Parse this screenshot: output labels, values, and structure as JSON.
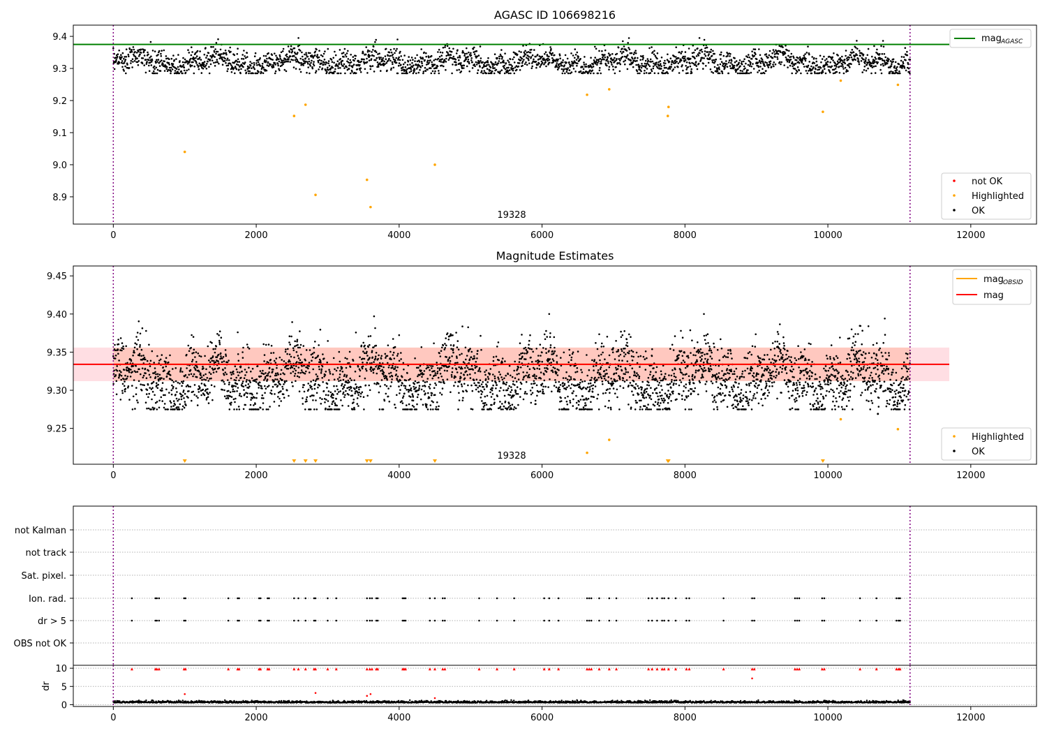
{
  "chart_data": [
    {
      "type": "scatter",
      "title": "AGASC ID 106698216",
      "x_ticks": [
        0,
        2000,
        4000,
        6000,
        8000,
        10000,
        12000
      ],
      "y_ticks": [
        "8.9",
        "9.0",
        "9.1",
        "9.2",
        "9.3",
        "9.4"
      ],
      "xlim": [
        -560,
        12920
      ],
      "ylim": [
        8.815,
        9.435
      ],
      "obsid_label": "19328",
      "obsid_start": 0,
      "obsid_end": 11150,
      "mag_agasc": 9.375,
      "ok_band": [
        9.285,
        9.395
      ],
      "ok_x_range": [
        0,
        11150
      ],
      "highlighted": [
        {
          "x": 1000,
          "y": 9.04
        },
        {
          "x": 2530,
          "y": 9.152
        },
        {
          "x": 2690,
          "y": 9.187
        },
        {
          "x": 2830,
          "y": 8.906
        },
        {
          "x": 3550,
          "y": 8.953
        },
        {
          "x": 3600,
          "y": 8.868
        },
        {
          "x": 4500,
          "y": 9.0
        },
        {
          "x": 6630,
          "y": 9.218
        },
        {
          "x": 6940,
          "y": 9.235
        },
        {
          "x": 7760,
          "y": 9.152
        },
        {
          "x": 7770,
          "y": 9.18
        },
        {
          "x": 9930,
          "y": 9.165
        },
        {
          "x": 10180,
          "y": 9.262
        },
        {
          "x": 10980,
          "y": 9.249
        }
      ],
      "legend_lines": [
        {
          "name": "mag",
          "sub": "AGASC",
          "color": "#008000"
        }
      ],
      "legend_points": [
        {
          "name": "not OK",
          "color": "#ff0000"
        },
        {
          "name": "Highlighted",
          "color": "#ffa500"
        },
        {
          "name": "OK",
          "color": "#000000"
        }
      ]
    },
    {
      "type": "scatter",
      "title": "Magnitude Estimates",
      "x_ticks": [
        0,
        2000,
        4000,
        6000,
        8000,
        10000,
        12000
      ],
      "y_ticks": [
        "9.25",
        "9.30",
        "9.35",
        "9.40",
        "9.45"
      ],
      "xlim": [
        -560,
        12920
      ],
      "ylim": [
        9.203,
        9.463
      ],
      "obsid_label": "19328",
      "obsid_start": 0,
      "obsid_end": 11150,
      "mag_mean": 9.334,
      "mag_band": [
        9.312,
        9.356
      ],
      "mag_obsid": 9.334,
      "ok_band": [
        9.275,
        9.4
      ],
      "ok_x_range": [
        0,
        11150
      ],
      "highlighted": [
        {
          "x": 6630,
          "y": 9.218
        },
        {
          "x": 6940,
          "y": 9.235
        },
        {
          "x": 10180,
          "y": 9.262
        },
        {
          "x": 10980,
          "y": 9.249
        }
      ],
      "extra_ok": [
        {
          "x": 10700,
          "y": 9.269
        }
      ],
      "offscale_x": [
        1000,
        2530,
        2690,
        2830,
        3550,
        3600,
        4500,
        7760,
        7770,
        9930
      ],
      "legend_lines": [
        {
          "name": "mag",
          "sub": "OBSID",
          "color": "#ffa500"
        },
        {
          "name": "mag",
          "sub": "",
          "color": "#ff0000"
        }
      ],
      "legend_points": [
        {
          "name": "Highlighted",
          "color": "#ffa500"
        },
        {
          "name": "OK",
          "color": "#000000"
        }
      ]
    },
    {
      "type": "scatter",
      "title": "",
      "x_ticks": [
        0,
        2000,
        4000,
        6000,
        8000,
        10000,
        12000
      ],
      "xlim": [
        -560,
        12920
      ],
      "flag_labels": [
        "not Kalman",
        "not track",
        "Sat. pixel.",
        "Ion. rad.",
        "dr > 5",
        "OBS not OK"
      ],
      "flag_times": [
        260,
        590,
        610,
        640,
        990,
        1010,
        1610,
        1740,
        1760,
        2040,
        2060,
        2160,
        2180,
        2530,
        2590,
        2690,
        2810,
        2830,
        3000,
        3120,
        3550,
        3590,
        3620,
        3680,
        3700,
        4050,
        4070,
        4090,
        4430,
        4500,
        4610,
        4640,
        5120,
        5370,
        5610,
        6030,
        6100,
        6230,
        6630,
        6660,
        6690,
        6800,
        6940,
        7040,
        7490,
        7540,
        7610,
        7680,
        7710,
        7770,
        7870,
        8020,
        8060,
        8540,
        8940,
        8970,
        9540,
        9570,
        9600,
        9920,
        9950,
        10450,
        10680,
        10960,
        10990,
        11010
      ],
      "dr_ylabel": "dr",
      "dr_ticks": [
        "0",
        "5",
        "10"
      ],
      "dr_ylim": [
        -0.5,
        10.8
      ],
      "dr_outliers": [
        {
          "x": 1000,
          "y": 2.9
        },
        {
          "x": 2830,
          "y": 3.2
        },
        {
          "x": 3550,
          "y": 2.4
        },
        {
          "x": 3600,
          "y": 2.9
        },
        {
          "x": 4500,
          "y": 1.8
        },
        {
          "x": 8940,
          "y": 7.2
        }
      ]
    }
  ]
}
